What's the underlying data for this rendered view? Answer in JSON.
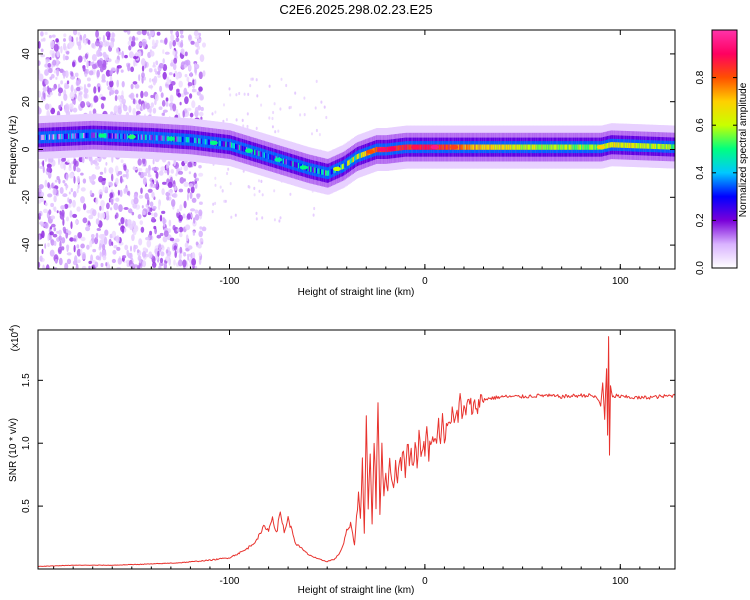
{
  "title": "C2E6.2025.298.02.23.E25",
  "chart_data": [
    {
      "type": "heatmap",
      "title": "C2E6.2025.298.02.23.E25",
      "xlabel": "Height of straight line (km)",
      "ylabel": "Frequency (Hz)",
      "xlim": [
        -198,
        128
      ],
      "ylim": [
        -50,
        50
      ],
      "xticks": [
        -100,
        0,
        100
      ],
      "xtick_labels": [
        "-100",
        "0",
        "100"
      ],
      "yticks": [
        -40,
        -20,
        0,
        20,
        40
      ],
      "ytick_labels": [
        "-40",
        "-20",
        "0",
        "20",
        "40"
      ],
      "ridge": {
        "x": [
          -198,
          -170,
          -140,
          -120,
          -100,
          -80,
          -60,
          -50,
          -42,
          -35,
          -25,
          -20,
          -10,
          0,
          20,
          50,
          90,
          95,
          128
        ],
        "freq": [
          5,
          6,
          5,
          4,
          2,
          -3,
          -8,
          -10,
          -7,
          -3,
          0,
          0,
          1,
          1,
          1,
          1,
          1,
          2,
          1
        ],
        "peak_amplitude": [
          0.45,
          0.45,
          0.5,
          0.5,
          0.5,
          0.5,
          0.5,
          0.55,
          0.65,
          0.75,
          0.85,
          0.9,
          0.9,
          0.95,
          0.8,
          0.65,
          0.6,
          0.7,
          0.6
        ]
      },
      "colorbar": {
        "label": "Normalized spectral amplitude",
        "range": [
          0,
          1
        ],
        "ticks": [
          0.0,
          0.2,
          0.4,
          0.6,
          0.8
        ],
        "tick_labels": [
          "0.0",
          "0.2",
          "0.4",
          "0.6",
          "0.8"
        ],
        "colors": [
          "#ffffff",
          "#d9b3ff",
          "#7a00d9",
          "#0000ff",
          "#00c8ff",
          "#00ff80",
          "#c8ff00",
          "#ffd000",
          "#ff5000",
          "#ff0060",
          "#ff33aa"
        ]
      }
    },
    {
      "type": "line",
      "xlabel": "Height of straight line (km)",
      "ylabel": "SNR (10 * v/v)",
      "y_multiplier": "(x10",
      "y_multiplier_exp": "4",
      "xlim": [
        -198,
        128
      ],
      "ylim": [
        0,
        1.9
      ],
      "xticks": [
        -100,
        0,
        100
      ],
      "xtick_labels": [
        "-100",
        "0",
        "100"
      ],
      "yticks": [
        0.5,
        1.0,
        1.5
      ],
      "ytick_labels": [
        "0.5",
        "1.0",
        "1.5"
      ],
      "series": [
        {
          "name": "SNR",
          "color": "#e8332e",
          "x": [
            -198,
            -180,
            -160,
            -140,
            -125,
            -110,
            -100,
            -92,
            -88,
            -84,
            -82,
            -80,
            -78,
            -76,
            -74,
            -72,
            -70,
            -66,
            -60,
            -55,
            -50,
            -46,
            -44,
            -42,
            -40,
            -38,
            -36,
            -34,
            -33,
            -32,
            -31,
            -30,
            -29,
            -28,
            -27,
            -26,
            -25,
            -24,
            -23,
            -22,
            -21,
            -20,
            -19,
            -18,
            -17,
            -16,
            -15,
            -14,
            -13,
            -12,
            -11,
            -10,
            -9,
            -8,
            -7,
            -6,
            -5,
            -4,
            -3,
            -2,
            -1,
            0,
            1,
            2,
            3,
            4,
            5,
            6,
            7,
            8,
            9,
            10,
            11,
            12,
            13,
            14,
            15,
            16,
            17,
            18,
            19,
            20,
            22,
            25,
            28,
            30,
            35,
            40,
            50,
            60,
            70,
            80,
            85,
            88,
            90,
            91,
            92,
            93,
            93.5,
            94,
            94.5,
            95,
            96,
            98,
            100,
            110,
            120,
            128
          ],
          "y": [
            0.02,
            0.03,
            0.03,
            0.04,
            0.05,
            0.07,
            0.09,
            0.15,
            0.2,
            0.28,
            0.35,
            0.3,
            0.42,
            0.28,
            0.45,
            0.3,
            0.4,
            0.2,
            0.12,
            0.08,
            0.06,
            0.08,
            0.12,
            0.18,
            0.3,
            0.35,
            0.2,
            0.6,
            0.4,
            0.85,
            0.3,
            1.2,
            0.5,
            0.9,
            0.35,
            1.05,
            0.5,
            1.35,
            0.45,
            0.95,
            0.55,
            0.8,
            0.6,
            0.9,
            0.7,
            0.65,
            0.85,
            0.7,
            0.9,
            0.8,
            0.95,
            0.75,
            1.05,
            0.85,
            0.95,
            0.8,
            1.0,
            0.85,
            1.05,
            0.9,
            1.0,
            0.95,
            1.1,
            0.9,
            1.05,
            1.0,
            1.1,
            1.0,
            1.15,
            1.05,
            1.2,
            1.05,
            1.1,
            1.2,
            1.1,
            1.25,
            1.15,
            1.3,
            1.2,
            1.35,
            1.2,
            1.25,
            1.3,
            1.28,
            1.33,
            1.35,
            1.36,
            1.37,
            1.37,
            1.38,
            1.37,
            1.38,
            1.38,
            1.36,
            1.3,
            1.48,
            1.2,
            1.6,
            1.05,
            1.85,
            0.9,
            1.45,
            1.36,
            1.38,
            1.37,
            1.36,
            1.37,
            1.38
          ]
        }
      ]
    }
  ]
}
